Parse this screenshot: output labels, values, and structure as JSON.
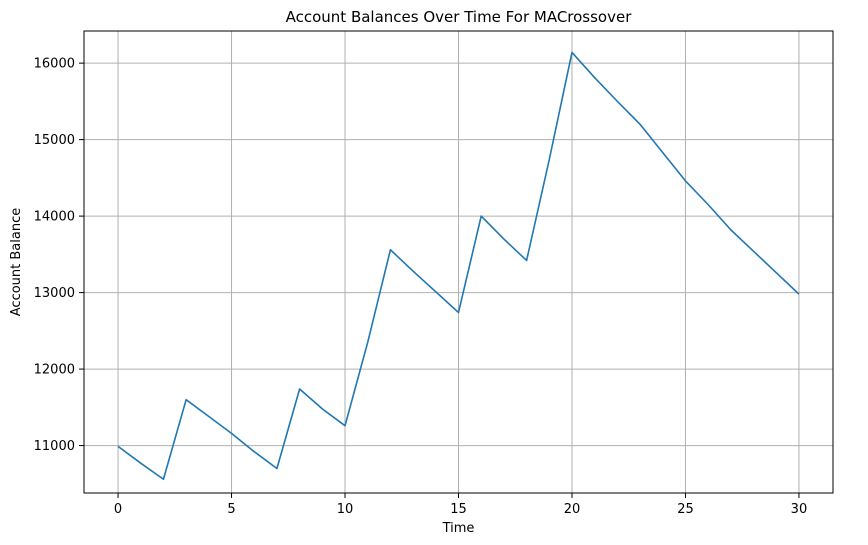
{
  "chart_data": {
    "type": "line",
    "title": "Account Balances Over Time For MACrossover",
    "xlabel": "Time",
    "ylabel": "Account Balance",
    "xlim": [
      -1.5,
      31.5
    ],
    "ylim": [
      10380,
      16420
    ],
    "xticks": [
      0,
      5,
      10,
      15,
      20,
      25,
      30
    ],
    "yticks": [
      11000,
      12000,
      13000,
      14000,
      15000,
      16000
    ],
    "grid": true,
    "series": [
      {
        "color": "#1f77b4",
        "x": [
          0,
          1,
          2,
          3,
          4,
          5,
          6,
          7,
          8,
          9,
          10,
          11,
          12,
          13,
          14,
          15,
          16,
          17,
          18,
          19,
          20,
          21,
          22,
          23,
          24,
          25,
          26,
          27,
          28,
          29,
          30
        ],
        "y": [
          10990,
          10770,
          10560,
          11600,
          11380,
          11160,
          10920,
          10700,
          11740,
          11480,
          11260,
          12350,
          13560,
          13280,
          13010,
          12740,
          14000,
          13700,
          13420,
          14740,
          16140,
          15810,
          15500,
          15200,
          14830,
          14460,
          14150,
          13820,
          13540,
          13260,
          12980
        ]
      }
    ]
  }
}
